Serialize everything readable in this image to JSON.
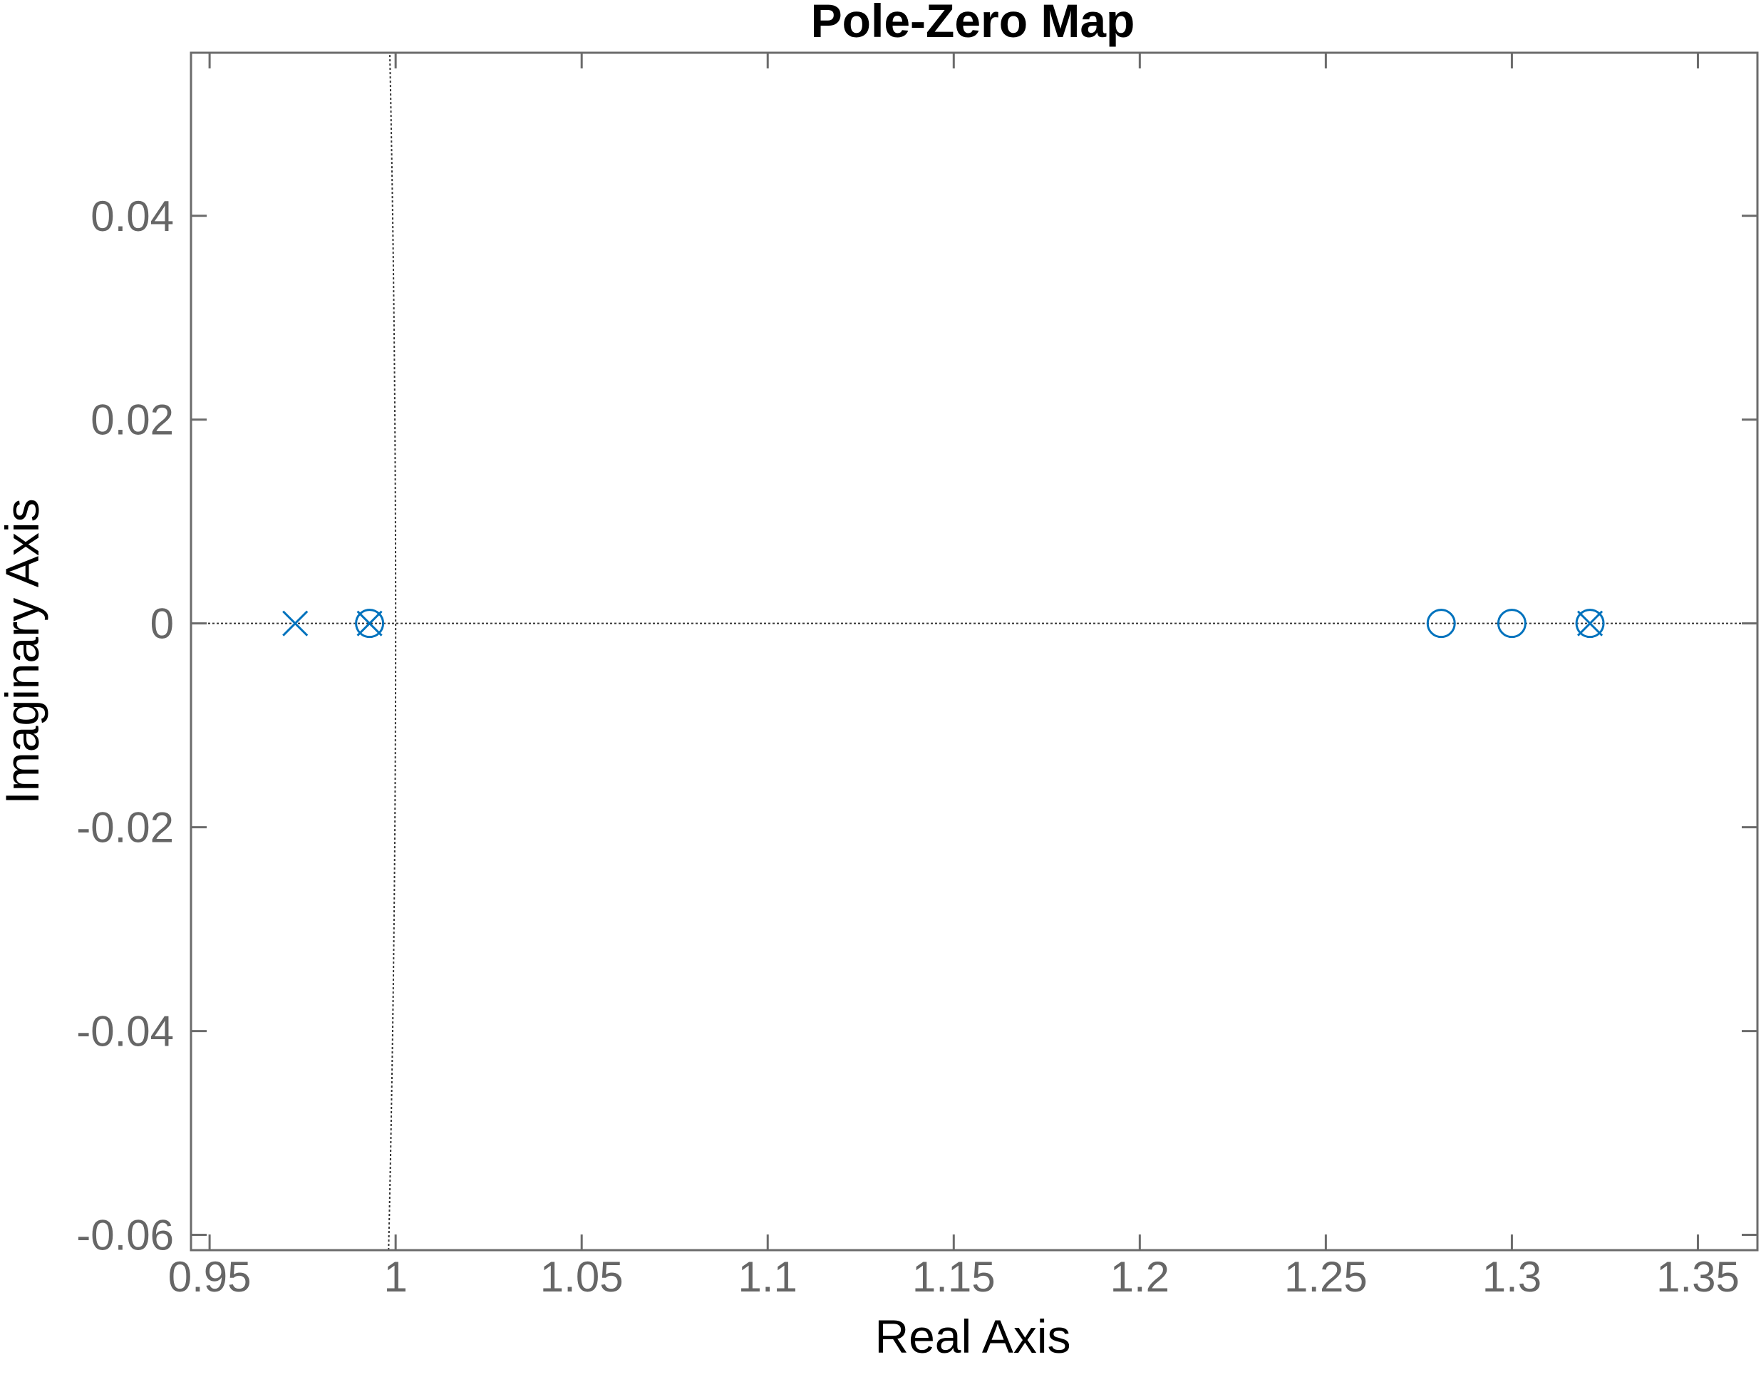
{
  "chart_data": {
    "type": "scatter",
    "title": "Pole-Zero Map",
    "xlabel": "Real Axis",
    "ylabel": "Imaginary Axis",
    "xlim": [
      0.945,
      1.366
    ],
    "ylim": [
      -0.0615,
      0.056
    ],
    "x_ticks": [
      0.95,
      1.0,
      1.05,
      1.1,
      1.15,
      1.2,
      1.25,
      1.3,
      1.35
    ],
    "x_tick_labels": [
      "0.95",
      "1",
      "1.05",
      "1.1",
      "1.15",
      "1.2",
      "1.25",
      "1.3",
      "1.35"
    ],
    "y_ticks": [
      -0.06,
      -0.04,
      -0.02,
      0,
      0.02,
      0.04
    ],
    "y_tick_labels": [
      "-0.06",
      "-0.04",
      "-0.02",
      "0",
      "0.02",
      "0.04"
    ],
    "grid": false,
    "reference_lines": [
      {
        "kind": "horizontal",
        "y": 0
      },
      {
        "kind": "unit-circle",
        "radius": 1
      }
    ],
    "series": [
      {
        "marker": "x",
        "points": [
          {
            "x": 0.973,
            "y": 0
          },
          {
            "x": 0.993,
            "y": 0
          },
          {
            "x": 1.321,
            "y": 0
          }
        ]
      },
      {
        "marker": "o",
        "points": [
          {
            "x": 0.993,
            "y": 0
          },
          {
            "x": 1.281,
            "y": 0
          },
          {
            "x": 1.3,
            "y": 0
          },
          {
            "x": 1.321,
            "y": 0
          }
        ]
      }
    ],
    "colors": {
      "markers": "#0072bd",
      "axes": "#6b6b6b",
      "tick_labels": "#666666",
      "reference": "#333333"
    }
  }
}
